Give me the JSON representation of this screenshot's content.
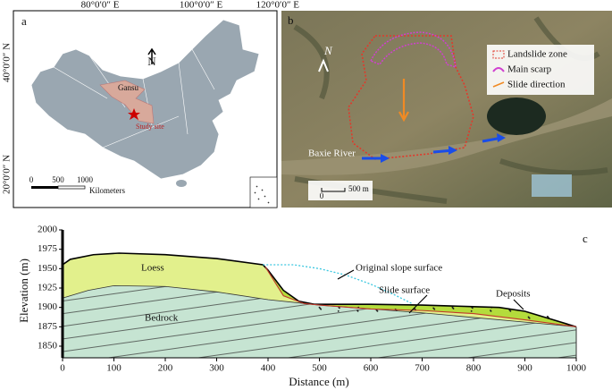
{
  "map": {
    "label": "a",
    "lon_labels": [
      "80°0′0″ E",
      "100°0′0″ E",
      "120°0′0″ E"
    ],
    "lat_labels": [
      "40°0′0″ N",
      "20°0′0″ N"
    ],
    "province": "Gansu",
    "site": "Study site",
    "north": "N",
    "scale": {
      "ticks": [
        "0",
        "500",
        "1000"
      ],
      "unit": "Kilometers"
    }
  },
  "image": {
    "label": "b",
    "north": "N",
    "legend": [
      "Landslide zone",
      "Main scarp",
      "Slide direction"
    ],
    "river": "Baxie River",
    "scale": {
      "ticks": [
        "0",
        "500 m"
      ]
    }
  },
  "chart_data": {
    "type": "area",
    "label": "c",
    "xlabel": "Distance (m)",
    "ylabel": "Elevation (m)",
    "xlim": [
      0,
      1000
    ],
    "ylim": [
      1835,
      2000
    ],
    "xticks": [
      0,
      100,
      200,
      300,
      400,
      500,
      600,
      700,
      800,
      900,
      1000
    ],
    "yticks": [
      1850,
      1875,
      1900,
      1925,
      1950,
      1975,
      2000
    ],
    "annotations": [
      "Loess",
      "Deposits"
    ],
    "series": [
      {
        "color": "#000000",
        "fill": "#e2f08c",
        "x": [
          0,
          15,
          60,
          110,
          200,
          300,
          390,
          400,
          430,
          460,
          490,
          600,
          700,
          800,
          850,
          900,
          950,
          1000
        ],
        "values": [
          1955,
          1962,
          1968,
          1970,
          1968,
          1963,
          1955,
          1948,
          1922,
          1908,
          1904,
          1904,
          1903,
          1901,
          1900,
          1895,
          1885,
          1875
        ]
      },
      {
        "name": "Bedrock",
        "color": "#333333",
        "fill": "#c6e4d2",
        "x": [
          0,
          50,
          100,
          200,
          300,
          400,
          500,
          600,
          700,
          800,
          900,
          1000
        ],
        "values": [
          1912,
          1922,
          1928,
          1927,
          1920,
          1910,
          1903,
          1898,
          1893,
          1887,
          1881,
          1875
        ]
      },
      {
        "name": "Slide surface",
        "color": "#c0392b",
        "fill": "#b4dc3c",
        "x": [
          395,
          430,
          470,
          500,
          600,
          700,
          800,
          900,
          1000
        ],
        "values": [
          1952,
          1915,
          1905,
          1903,
          1898,
          1896,
          1892,
          1884,
          1875
        ]
      },
      {
        "name": "Original slope surface",
        "color": "#3cc8e0",
        "x": [
          390,
          450,
          500,
          550,
          600,
          650,
          680
        ],
        "values": [
          1955,
          1955,
          1950,
          1942,
          1930,
          1915,
          1905
        ]
      }
    ]
  }
}
